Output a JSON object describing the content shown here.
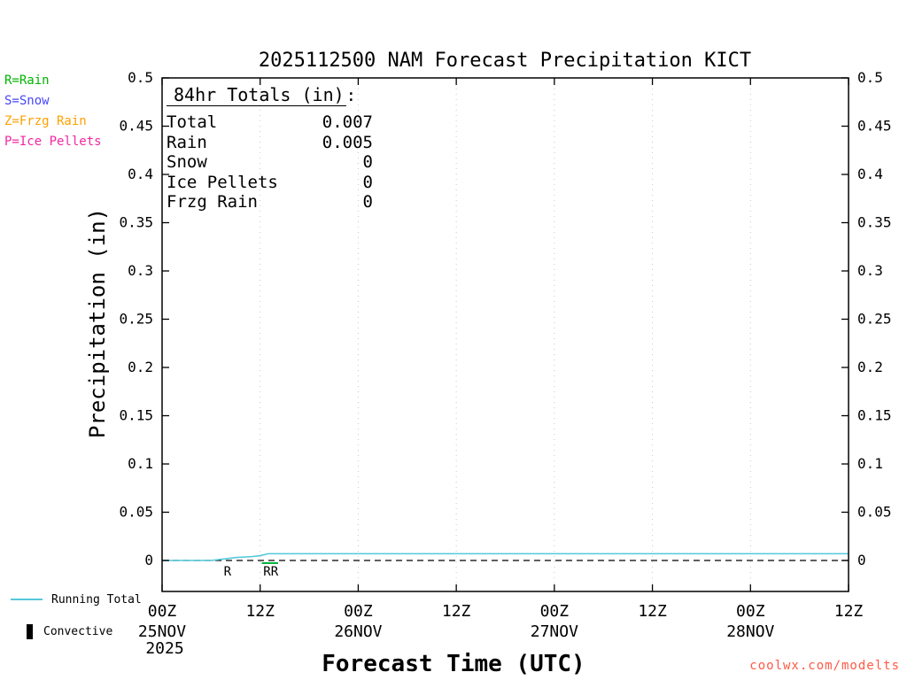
{
  "chart_data": {
    "type": "line",
    "title": "2025112500 NAM Forecast Precipitation KICT",
    "xlabel": "Forecast Time (UTC)",
    "ylabel": "Precipitation (in)",
    "ylim": [
      0,
      0.5
    ],
    "yticks": [
      0,
      0.05,
      0.1,
      0.15,
      0.2,
      0.25,
      0.3,
      0.35,
      0.4,
      0.45,
      0.5
    ],
    "ytick_labels": [
      "0",
      "0.05",
      "0.1",
      "0.15",
      "0.2",
      "0.25",
      "0.3",
      "0.35",
      "0.4",
      "0.45",
      "0.5"
    ],
    "x_range": [
      0,
      84
    ],
    "xticks": [
      {
        "hour": 0,
        "label": "00Z",
        "date": "25NOV",
        "year": "2025"
      },
      {
        "hour": 12,
        "label": "12Z"
      },
      {
        "hour": 24,
        "label": "00Z",
        "date": "26NOV"
      },
      {
        "hour": 36,
        "label": "12Z"
      },
      {
        "hour": 48,
        "label": "00Z",
        "date": "27NOV"
      },
      {
        "hour": 60,
        "label": "12Z"
      },
      {
        "hour": 72,
        "label": "00Z",
        "date": "28NOV"
      },
      {
        "hour": 84,
        "label": "12Z"
      }
    ],
    "grid": "vertical-dotted",
    "gridline_color": "#c8c8c8",
    "zero_line": {
      "value": 0,
      "style": "dashed",
      "color": "#000000"
    },
    "series": [
      {
        "name": "Running Total",
        "color": "#55c8dc",
        "points": [
          [
            0,
            0
          ],
          [
            6,
            0
          ],
          [
            7,
            0.001
          ],
          [
            8,
            0.002
          ],
          [
            9,
            0.003
          ],
          [
            11,
            0.004
          ],
          [
            12,
            0.005
          ],
          [
            13,
            0.007
          ],
          [
            84,
            0.007
          ]
        ]
      }
    ],
    "type_line_segments": [
      {
        "from": 12.2,
        "to": 14.2,
        "value": 0,
        "color": "#00b43c"
      }
    ],
    "precip_type_markers": [
      {
        "hour": 8,
        "label": "R",
        "color": "#00b43c"
      },
      {
        "hour": 13.3,
        "label": "RR",
        "color": "#00b43c"
      }
    ],
    "legend_position": "bottom-left",
    "legend": [
      {
        "label": "Running Total",
        "type": "line",
        "color": "#55c8dc"
      },
      {
        "label": "Convective",
        "type": "bar",
        "color": "#000000"
      }
    ]
  },
  "totals_box": {
    "heading": "84hr Totals (in)",
    "heading_suffix": ":",
    "rows": [
      {
        "label": "Total",
        "value": "0.007"
      },
      {
        "label": "Rain",
        "value": "0.005"
      },
      {
        "label": "Snow",
        "value": "0"
      },
      {
        "label": "Ice Pellets",
        "value": "0"
      },
      {
        "label": "Frzg Rain",
        "value": "0"
      }
    ]
  },
  "type_legend": {
    "items": [
      {
        "label": "R=Rain",
        "color": "#00b400"
      },
      {
        "label": "S=Snow",
        "color": "#4646ff"
      },
      {
        "label": "Z=Frzg Rain",
        "color": "#ffa000"
      },
      {
        "label": "P=Ice Pellets",
        "color": "#f028a0"
      }
    ]
  },
  "watermark": {
    "text": "coolwx.com/modelts",
    "color": "#ff5a46"
  }
}
